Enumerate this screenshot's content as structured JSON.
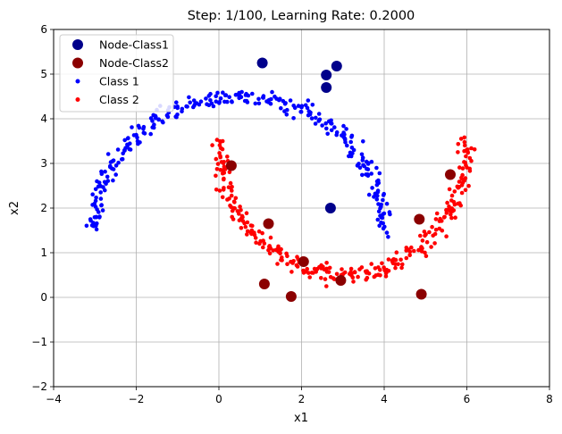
{
  "chart_data": {
    "type": "scatter",
    "title": "Step: 1/100, Learning Rate: 0.2000",
    "xlabel": "x1",
    "ylabel": "x2",
    "xlim": [
      -4,
      8
    ],
    "ylim": [
      -2,
      6
    ],
    "xticks": [
      -4,
      -2,
      0,
      2,
      4,
      6,
      8
    ],
    "xtick_labels": [
      "−4",
      "−2",
      "0",
      "2",
      "4",
      "6",
      "8"
    ],
    "yticks": [
      -2,
      -1,
      0,
      1,
      2,
      3,
      4,
      5,
      6
    ],
    "ytick_labels": [
      "−2",
      "−1",
      "0",
      "1",
      "2",
      "3",
      "4",
      "5",
      "6"
    ],
    "grid": true,
    "legend_position": "upper-left",
    "series": [
      {
        "name": "Node-Class1",
        "color": "#00008b",
        "marker": "large-circle",
        "points": [
          [
            1.05,
            5.25
          ],
          [
            2.6,
            4.98
          ],
          [
            2.85,
            5.18
          ],
          [
            2.6,
            4.7
          ],
          [
            2.7,
            2.0
          ]
        ]
      },
      {
        "name": "Node-Class2",
        "color": "#8b0000",
        "marker": "large-circle",
        "points": [
          [
            1.1,
            0.3
          ],
          [
            1.75,
            0.02
          ],
          [
            2.95,
            0.38
          ],
          [
            4.9,
            0.07
          ],
          [
            1.2,
            1.65
          ],
          [
            2.05,
            0.8
          ],
          [
            0.3,
            2.95
          ],
          [
            4.85,
            1.75
          ],
          [
            5.6,
            2.75
          ]
        ]
      },
      {
        "name": "Class 1",
        "color": "#0000ff",
        "marker": "small-circle",
        "curve": {
          "shape": "arc",
          "center": [
            0.0,
            0.0
          ],
          "radius": 1.0,
          "offset": [
            0.0,
            0.0
          ],
          "angle_range_deg": [
            0,
            180
          ]
        },
        "points_description": "upper half moon",
        "count": 300,
        "noise": 0.1
      },
      {
        "name": "Class 2",
        "color": "#ff0000",
        "marker": "small-circle",
        "points_description": "lower half moon",
        "count": 300,
        "noise": 0.1
      }
    ]
  }
}
